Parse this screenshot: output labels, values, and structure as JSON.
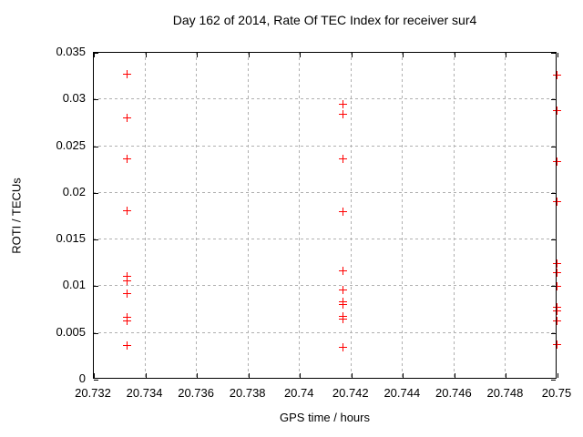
{
  "chart_data": {
    "type": "scatter",
    "title": "Day 162 of 2014, Rate Of TEC Index for receiver sur4",
    "xlabel": "GPS time / hours",
    "ylabel": "ROTI / TECUs",
    "xlim": [
      20.732,
      20.75
    ],
    "ylim": [
      0,
      0.035
    ],
    "grid": true,
    "legend_position": "none",
    "background_color": "#ffffff",
    "grid_color": "#b0b0b0",
    "marker": {
      "shape": "plus",
      "color": "#ff0000",
      "size": 9
    },
    "x_ticks": [
      {
        "value": 20.732,
        "label": "20.732"
      },
      {
        "value": 20.734,
        "label": "20.734"
      },
      {
        "value": 20.736,
        "label": "20.736"
      },
      {
        "value": 20.738,
        "label": "20.738"
      },
      {
        "value": 20.74,
        "label": "20.74"
      },
      {
        "value": 20.742,
        "label": "20.742"
      },
      {
        "value": 20.744,
        "label": "20.744"
      },
      {
        "value": 20.746,
        "label": "20.746"
      },
      {
        "value": 20.748,
        "label": "20.748"
      },
      {
        "value": 20.75,
        "label": "20.75"
      }
    ],
    "y_ticks": [
      {
        "value": 0,
        "label": "0"
      },
      {
        "value": 0.005,
        "label": "0.005"
      },
      {
        "value": 0.01,
        "label": "0.01"
      },
      {
        "value": 0.015,
        "label": "0.015"
      },
      {
        "value": 0.02,
        "label": "0.02"
      },
      {
        "value": 0.025,
        "label": "0.025"
      },
      {
        "value": 0.03,
        "label": "0.03"
      },
      {
        "value": 0.035,
        "label": "0.035"
      }
    ],
    "series": [
      {
        "name": "ROTI",
        "points": [
          [
            20.7333,
            0.0327
          ],
          [
            20.7333,
            0.028
          ],
          [
            20.7333,
            0.0236
          ],
          [
            20.7333,
            0.018
          ],
          [
            20.7333,
            0.011
          ],
          [
            20.7333,
            0.0105
          ],
          [
            20.7333,
            0.0092
          ],
          [
            20.7333,
            0.0066
          ],
          [
            20.7333,
            0.0062
          ],
          [
            20.7333,
            0.0036
          ],
          [
            20.7417,
            0.0294
          ],
          [
            20.7417,
            0.0284
          ],
          [
            20.7417,
            0.0236
          ],
          [
            20.7417,
            0.0179
          ],
          [
            20.7417,
            0.0116
          ],
          [
            20.7417,
            0.0096
          ],
          [
            20.7417,
            0.0083
          ],
          [
            20.7417,
            0.008
          ],
          [
            20.7417,
            0.0067
          ],
          [
            20.7417,
            0.0064
          ],
          [
            20.7417,
            0.0034
          ],
          [
            20.75,
            0.0326
          ],
          [
            20.75,
            0.0288
          ],
          [
            20.75,
            0.0233
          ],
          [
            20.75,
            0.019
          ],
          [
            20.75,
            0.0124
          ],
          [
            20.75,
            0.0114
          ],
          [
            20.75,
            0.0099
          ],
          [
            20.75,
            0.0077
          ],
          [
            20.75,
            0.0073
          ],
          [
            20.75,
            0.0062
          ],
          [
            20.75,
            0.0037
          ]
        ]
      }
    ]
  }
}
